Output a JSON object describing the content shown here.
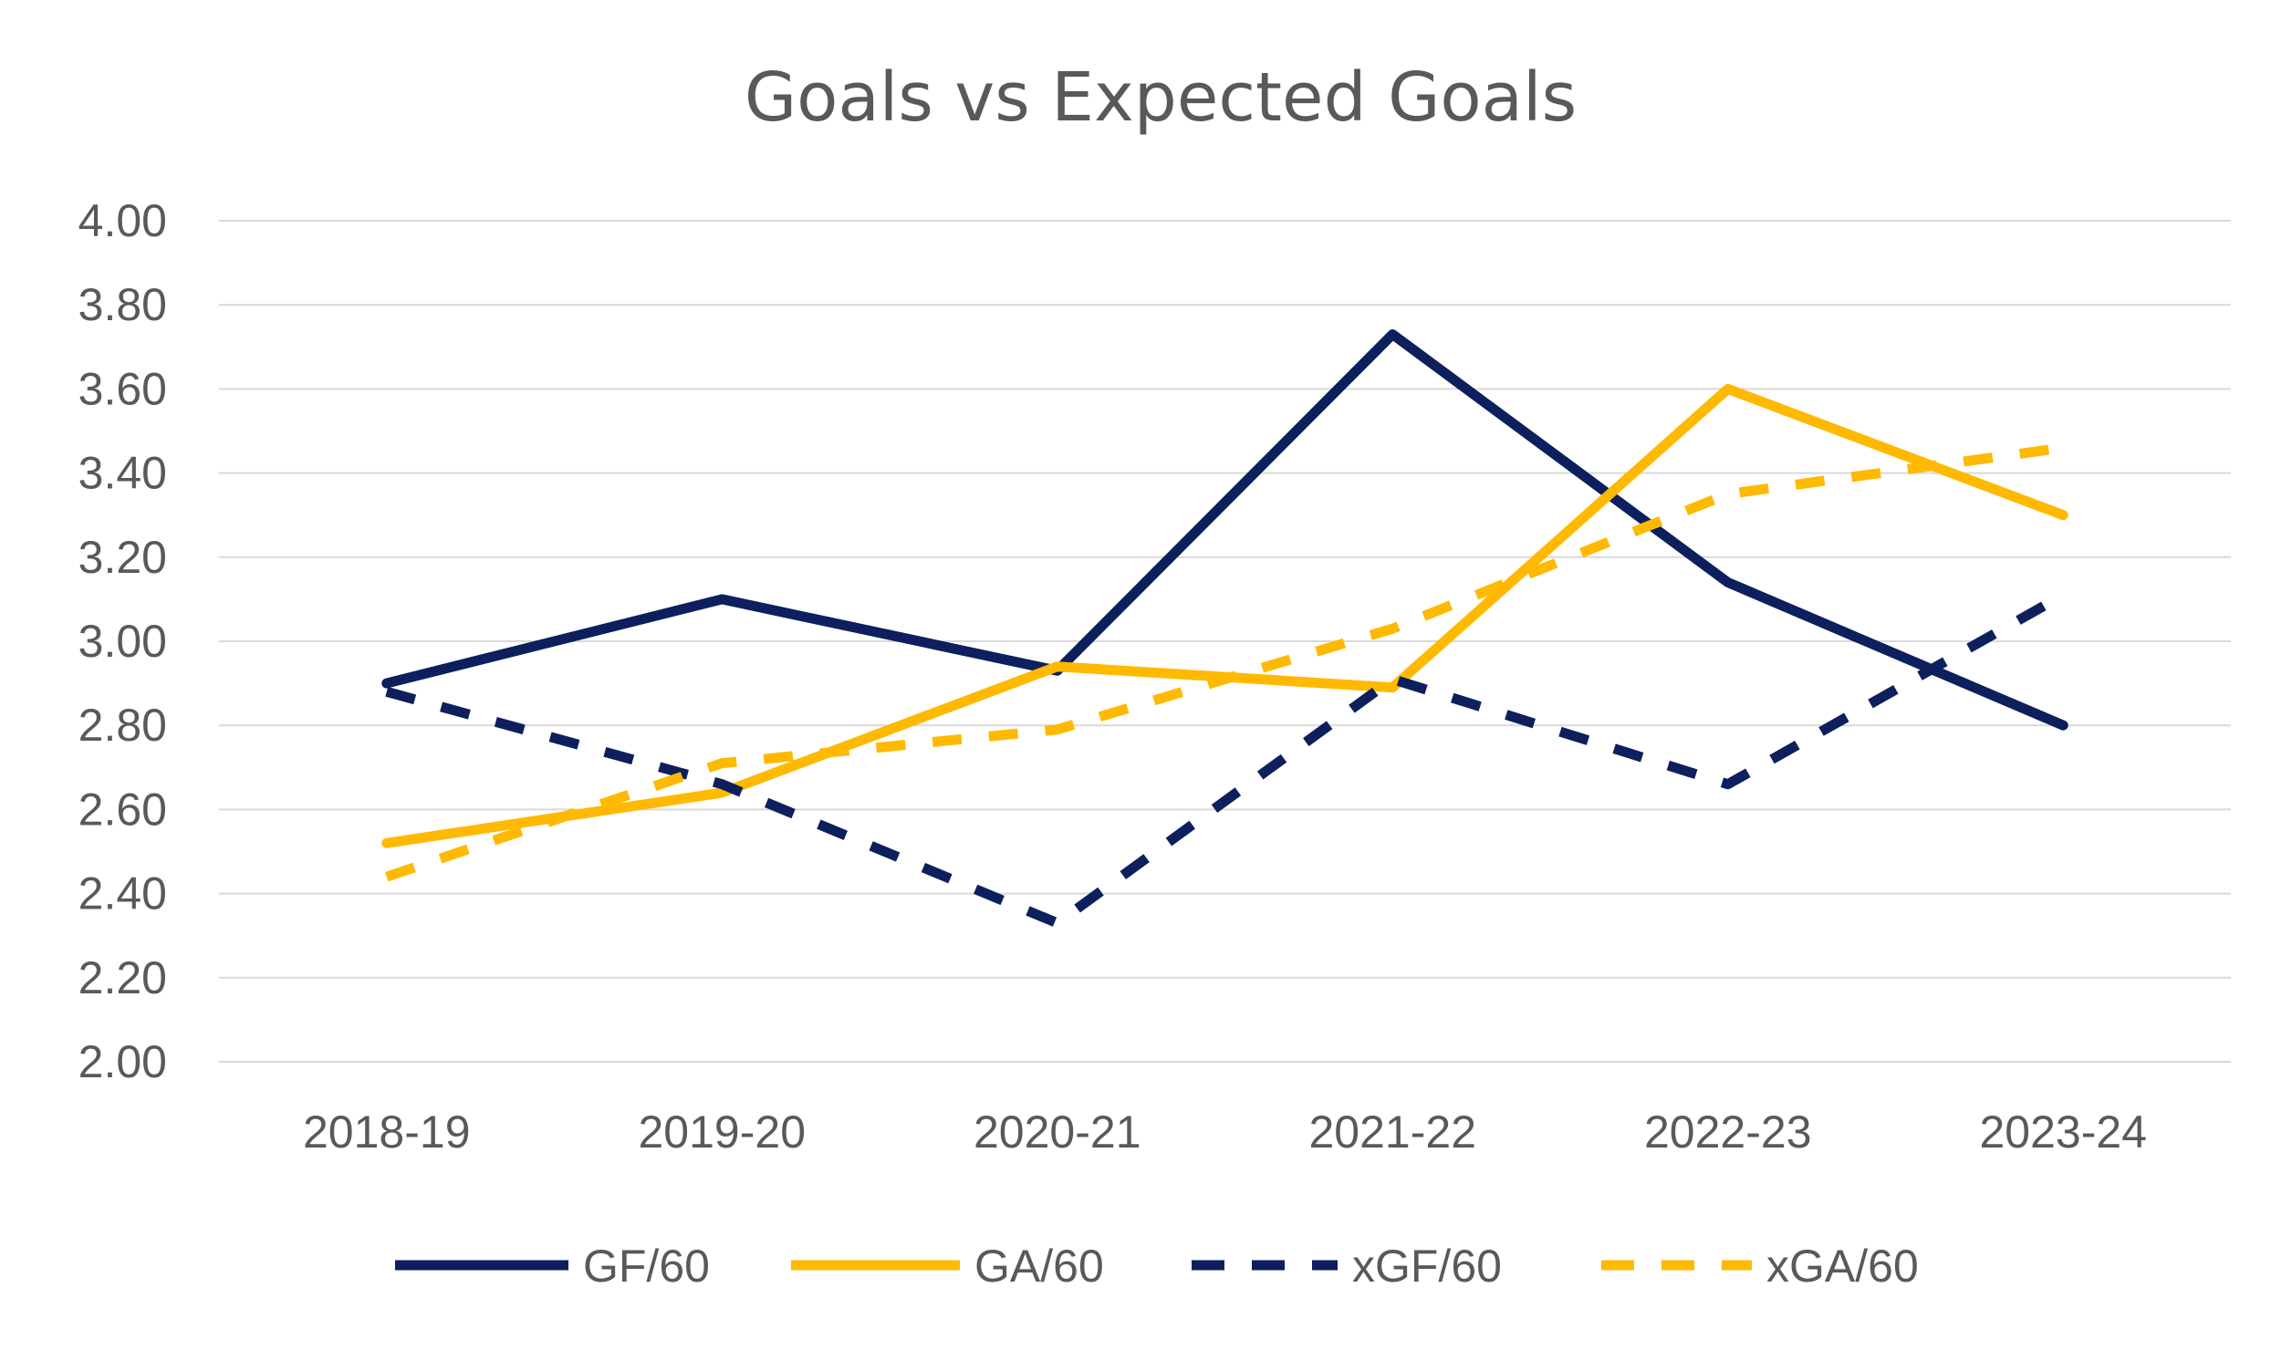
{
  "chart_data": {
    "type": "line",
    "title": "Goals vs Expected Goals",
    "xlabel": "",
    "ylabel": "",
    "categories": [
      "2018-19",
      "2019-20",
      "2020-21",
      "2021-22",
      "2022-23",
      "2023-24"
    ],
    "ylim": [
      2.0,
      4.0
    ],
    "yticks": [
      "2.00",
      "2.20",
      "2.40",
      "2.60",
      "2.80",
      "3.00",
      "3.20",
      "3.40",
      "3.60",
      "3.80",
      "4.00"
    ],
    "grid": true,
    "legend_position": "bottom",
    "series": [
      {
        "name": "GF/60",
        "values": [
          2.9,
          3.1,
          2.93,
          3.73,
          3.14,
          2.8
        ],
        "color": "#0D1F5C",
        "dash": "solid"
      },
      {
        "name": "GA/60",
        "values": [
          2.52,
          2.64,
          2.94,
          2.89,
          3.6,
          3.3
        ],
        "color": "#FFB901",
        "dash": "solid"
      },
      {
        "name": "xGF/60",
        "values": [
          2.88,
          2.66,
          2.33,
          2.91,
          2.66,
          3.11
        ],
        "color": "#0D1F5C",
        "dash": "dashed"
      },
      {
        "name": "xGA/60",
        "values": [
          2.44,
          2.71,
          2.79,
          3.03,
          3.35,
          3.46
        ],
        "color": "#FFB901",
        "dash": "dashed"
      }
    ]
  }
}
